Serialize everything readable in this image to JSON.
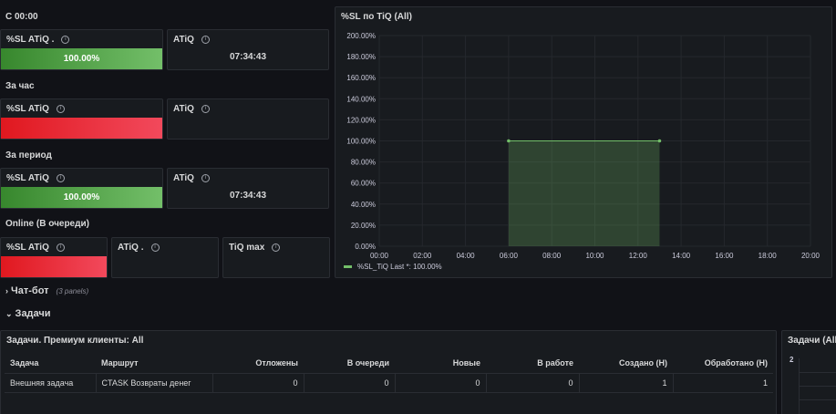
{
  "left": {
    "section_c0000": "С 00:00",
    "section_hour": "За час",
    "section_period": "За период",
    "section_online": "Online (В очереди)",
    "panels": {
      "sl_atiq_c0000": {
        "title": "%SL ATiQ .",
        "value": "100.00%",
        "fraction": 1.0
      },
      "atiq_c0000": {
        "title": "ATiQ",
        "value": "07:34:43"
      },
      "sl_atiq_hour": {
        "title": "%SL ATiQ",
        "value": "",
        "fraction": 0.0
      },
      "atiq_hour": {
        "title": "ATiQ",
        "value": ""
      },
      "sl_atiq_period": {
        "title": "%SL ATiQ",
        "value": "100.00%",
        "fraction": 1.0
      },
      "atiq_period": {
        "title": "ATiQ",
        "value": "07:34:43"
      },
      "sl_atiq_online": {
        "title": "%SL ATiQ",
        "value": "",
        "fraction": 0.0
      },
      "atiq_online": {
        "title": "ATiQ .",
        "value": ""
      },
      "tiq_max_online": {
        "title": "TiQ max",
        "value": ""
      }
    }
  },
  "graph": {
    "title": "%SL по TiQ (All)",
    "legend": "%SL_TiQ  Last *: 100.00%"
  },
  "chart_data": {
    "type": "area",
    "title": "%SL по TiQ (All)",
    "x_ticks": [
      "00:00",
      "02:00",
      "04:00",
      "06:00",
      "08:00",
      "10:00",
      "12:00",
      "14:00",
      "16:00",
      "18:00",
      "20:00"
    ],
    "y_ticks": [
      "0.00%",
      "20.00%",
      "40.00%",
      "60.00%",
      "80.00%",
      "100.00%",
      "120.00%",
      "140.00%",
      "160.00%",
      "180.00%",
      "200.00%"
    ],
    "ylim": [
      0,
      200
    ],
    "xlim_hours": [
      0,
      20
    ],
    "series": [
      {
        "name": "%SL_TiQ",
        "color": "#73bf69",
        "x": [
          "06:00",
          "13:00"
        ],
        "y": [
          100,
          100
        ]
      }
    ],
    "grid": true,
    "legend_position": "bottom-left"
  },
  "rows": {
    "chat_bot": {
      "label": "Чат-бот",
      "sub": "(3 panels)"
    },
    "tasks": {
      "label": "Задачи"
    }
  },
  "tasks_table": {
    "title": "Задачи. Премиум клиенты: All",
    "columns": [
      "Задача",
      "Маршрут",
      "Отложены",
      "В очереди",
      "Новые",
      "В работе",
      "Создано (Н)",
      "Обработано (Н)"
    ],
    "rows": [
      [
        "Внешняя задача",
        "CTASK Возвраты денег",
        "0",
        "0",
        "0",
        "0",
        "1",
        "1"
      ]
    ]
  },
  "right_panel": {
    "title": "Задачи (All)",
    "y_tick": "2"
  },
  "colors": {
    "background": "#111217",
    "panel": "#181b1f",
    "green": "#73bf69",
    "red": "#f2495c"
  }
}
